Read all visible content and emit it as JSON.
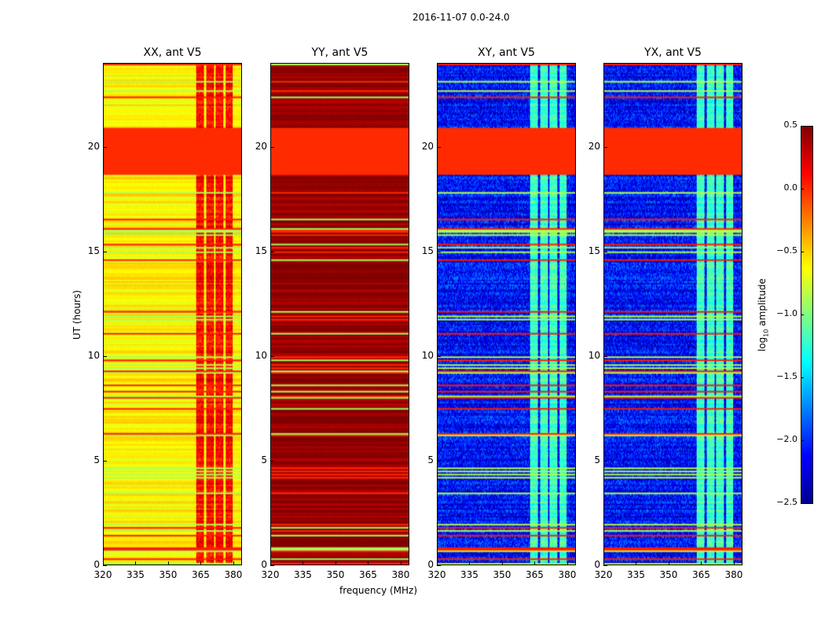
{
  "suptitle": "2016-11-07 0.0-24.0",
  "chart_data": {
    "type": "heatmap",
    "title": "2016-11-07 0.0-24.0",
    "xlabel": "frequency (MHz)",
    "ylabel": "UT (hours)",
    "xlim": [
      320,
      384
    ],
    "ylim": [
      0,
      24
    ],
    "xticks": [
      "320",
      "335",
      "350",
      "365",
      "380"
    ],
    "xtick_values": [
      320,
      335,
      350,
      365,
      380
    ],
    "yticks": [
      "0",
      "5",
      "10",
      "15",
      "20"
    ],
    "ytick_values": [
      0,
      5,
      10,
      15,
      20
    ],
    "panels": [
      {
        "title": "XX, ant V5",
        "background_log10": -0.6,
        "rfi_band_mhz": [
          363,
          380
        ],
        "rfi_log10": 0.1,
        "flagged_hours": [
          18.7,
          20.9
        ],
        "flagged_log10": 0.0
      },
      {
        "title": "YY, ant V5",
        "background_log10": 0.45,
        "rfi_band_mhz": null,
        "rfi_log10": 0.45,
        "flagged_hours": [
          18.7,
          20.9
        ],
        "flagged_log10": 0.0
      },
      {
        "title": "XY, ant V5",
        "background_log10": -2.1,
        "rfi_band_mhz": [
          363,
          380
        ],
        "rfi_log10": -1.2,
        "flagged_hours": [
          18.7,
          20.9
        ],
        "flagged_log10": 0.0
      },
      {
        "title": "YX, ant V5",
        "background_log10": -2.1,
        "rfi_band_mhz": [
          363,
          380
        ],
        "rfi_log10": -1.2,
        "flagged_hours": [
          18.7,
          20.9
        ],
        "flagged_log10": 0.0
      }
    ],
    "colorbar": {
      "label": "log10 amplitude",
      "label_main": "log",
      "label_sub": "10",
      "label_rest": " amplitude",
      "range": [
        -2.5,
        0.5
      ],
      "ticks": [
        "0.5",
        "0.0",
        "−0.5",
        "−1.0",
        "−1.5",
        "−2.0",
        "−2.5"
      ],
      "tick_values": [
        0.5,
        0.0,
        -0.5,
        -1.0,
        -1.5,
        -2.0,
        -2.5
      ],
      "colormap": "jet"
    }
  }
}
